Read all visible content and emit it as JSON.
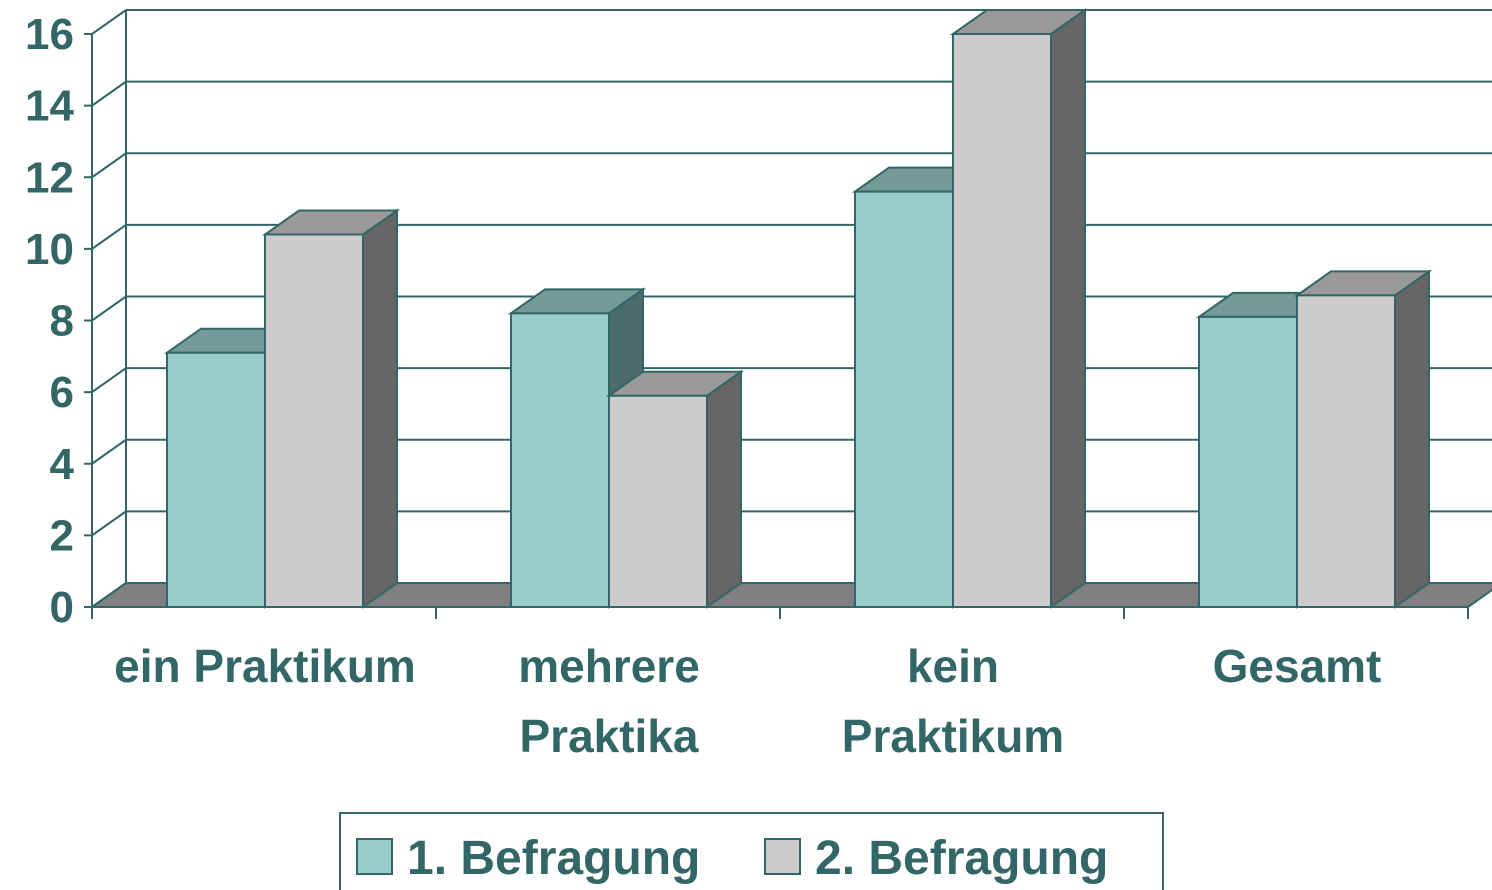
{
  "chart_data": {
    "type": "bar3d",
    "categories": [
      "ein Praktikum",
      "mehrere\nPraktika",
      "kein\nPraktikum",
      "Gesamt"
    ],
    "series": [
      {
        "name": "1. Befragung",
        "color": "#99cccc",
        "values": [
          7.1,
          8.2,
          11.6,
          8.1
        ]
      },
      {
        "name": "2. Befragung",
        "color": "#cccccc",
        "values": [
          10.4,
          5.9,
          16.0,
          8.7
        ]
      }
    ],
    "ylim": [
      0,
      16
    ],
    "yticks": [
      0,
      2,
      4,
      6,
      8,
      10,
      12,
      14,
      16
    ],
    "grid": true,
    "legend": "bottom"
  }
}
